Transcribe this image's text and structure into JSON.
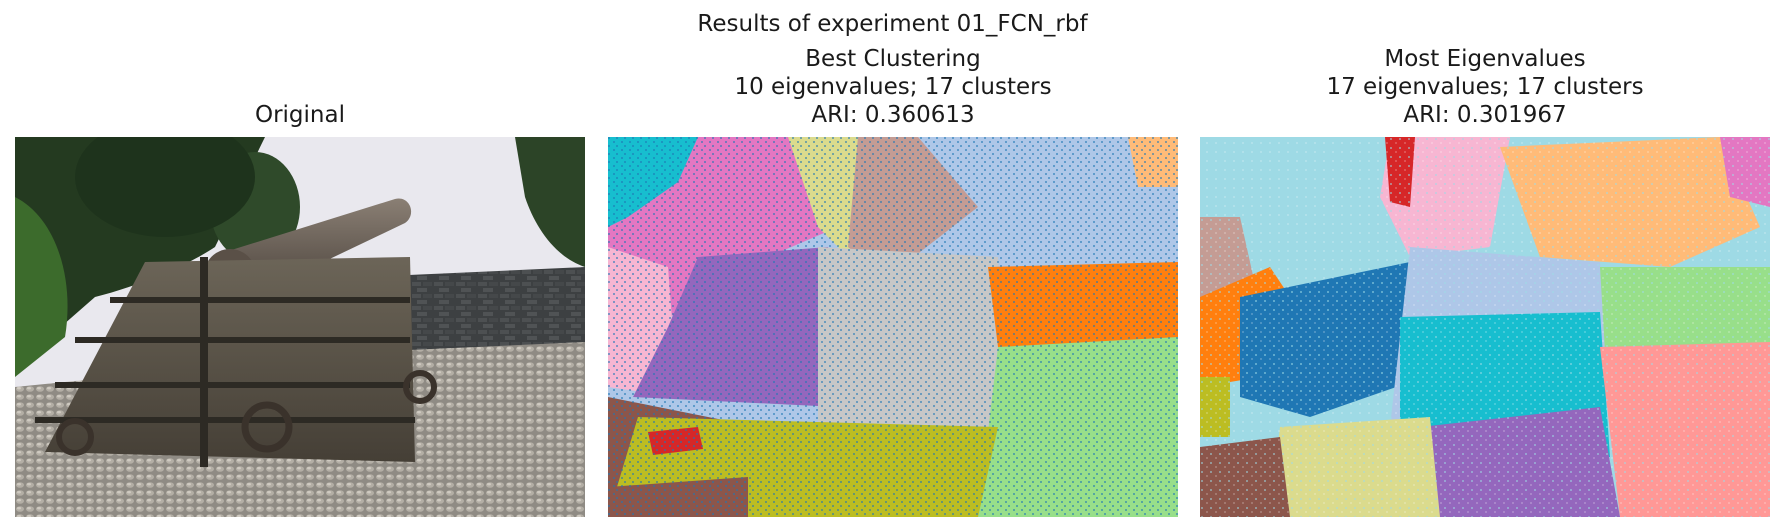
{
  "figure": {
    "suptitle": "Results of experiment 01_FCN_rbf"
  },
  "panels": [
    {
      "title_lines": [
        "Original"
      ]
    },
    {
      "title_lines": [
        "Best Clustering",
        "10 eigenvalues; 17 clusters",
        "ARI: 0.360613"
      ]
    },
    {
      "title_lines": [
        "Most Eigenvalues",
        "17 eigenvalues; 17 clusters",
        "ARI: 0.301967"
      ]
    }
  ],
  "palette": {
    "tab_blue": "#1f77b4",
    "tab_lightblue": "#aec7e8",
    "tab_orange": "#ff7f0e",
    "tab_lightorange": "#ffbb78",
    "tab_green": "#98df8a",
    "tab_red": "#d62728",
    "tab_salmon": "#ff9896",
    "tab_purple": "#9467bd",
    "tab_brown": "#8c564b",
    "tab_tan": "#c49c94",
    "tab_pink": "#e377c2",
    "tab_lightpink": "#f7b6d2",
    "tab_gray": "#c7c7c7",
    "tab_olive": "#bcbd22",
    "tab_khaki": "#dbdb8d",
    "tab_cyan": "#17becf",
    "tab_lightcyan": "#9edae5"
  }
}
